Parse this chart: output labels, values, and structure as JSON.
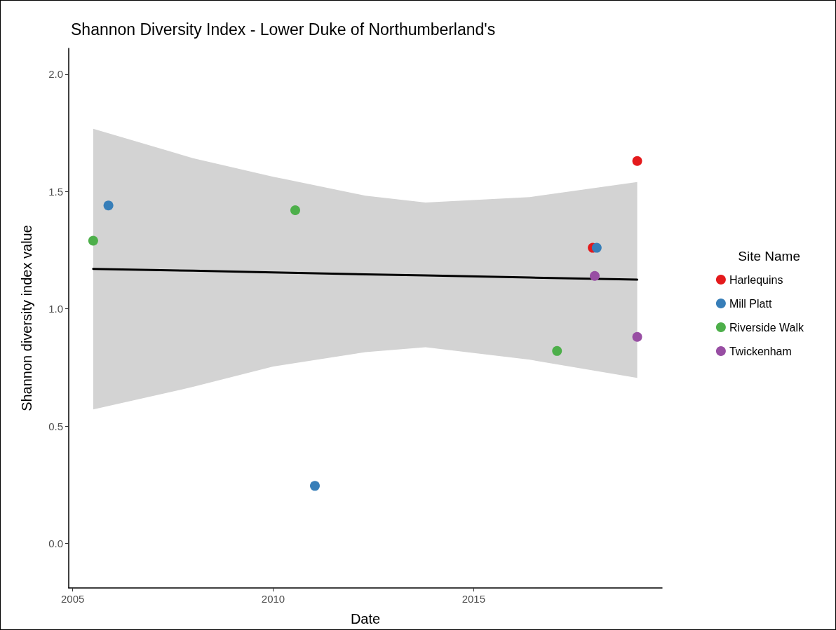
{
  "chart_data": {
    "type": "scatter",
    "title": "Shannon Diversity Index - Lower Duke of Northumberland's",
    "xlabel": "Date",
    "ylabel": "Shannon diversity index value",
    "legend_title": "Site Name",
    "xlim": [
      2004.9,
      2019.7
    ],
    "xticks": [
      2005,
      2010,
      2015
    ],
    "ylim": [
      -0.19,
      2.11
    ],
    "yticks": [
      {
        "value": 0,
        "label": "0.0"
      },
      {
        "value": 0.5,
        "label": "0.5"
      },
      {
        "value": 1,
        "label": "1.0"
      },
      {
        "value": 1.5,
        "label": "1.5"
      },
      {
        "value": 2,
        "label": "2.0"
      }
    ],
    "grid": false,
    "legend": "right",
    "marker": "circle",
    "series": [
      {
        "name": "Harlequins",
        "color": "#e41a1c",
        "x": [
          2019.08,
          2017.97
        ],
        "values": [
          1.63,
          1.26
        ]
      },
      {
        "name": "Mill Platt",
        "color": "#377eb8",
        "x": [
          2005.89,
          2011.04,
          2018.07
        ],
        "values": [
          1.44,
          0.245,
          1.26
        ]
      },
      {
        "name": "Riverside Walk",
        "color": "#4daf4a",
        "x": [
          2005.51,
          2010.55,
          2017.08
        ],
        "values": [
          1.29,
          1.42,
          0.82
        ]
      },
      {
        "name": "Twickenham",
        "color": "#984ea3",
        "x": [
          2018.02,
          2019.08
        ],
        "values": [
          1.14,
          0.88
        ]
      },
      {
        "type": "line",
        "color": "#000000",
        "marker": "none",
        "x": [
          2005.51,
          2008,
          2010,
          2012.3,
          2013.8,
          2016.4,
          2019.08
        ],
        "values": [
          1.17,
          1.162,
          1.155,
          1.147,
          1.142,
          1.133,
          1.124
        ],
        "lower": [
          0.571,
          0.667,
          0.754,
          0.815,
          0.836,
          0.783,
          0.705
        ],
        "upper": [
          1.767,
          1.642,
          1.563,
          1.482,
          1.453,
          1.476,
          1.54
        ]
      }
    ]
  }
}
